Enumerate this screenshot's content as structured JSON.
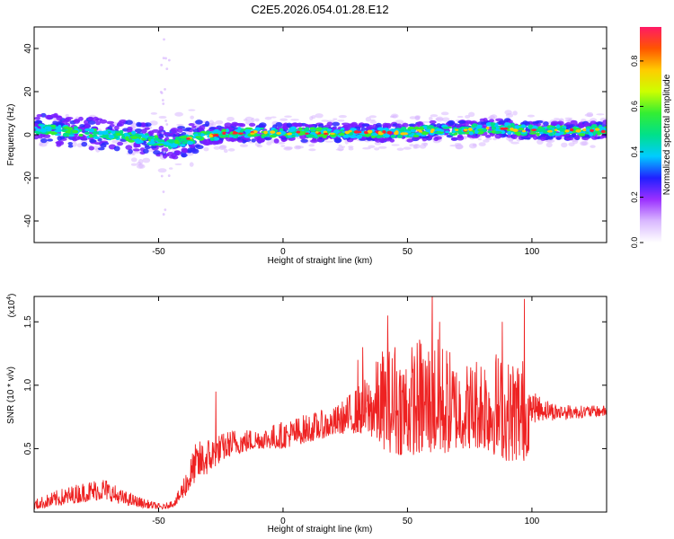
{
  "figure_title": "C2E5.2026.054.01.28.E12",
  "chart_data": [
    {
      "type": "heatmap",
      "title": "C2E5.2026.054.01.28.E12",
      "xlabel": "Height of straight line (km)",
      "ylabel": "Frequency (Hz)",
      "xlim": [
        -100,
        130
      ],
      "ylim": [
        -50,
        50
      ],
      "xticks": [
        -50,
        0,
        50,
        100
      ],
      "yticks": [
        -40,
        -20,
        0,
        20,
        40
      ],
      "xtick_labels": [
        "-50",
        "0",
        "50",
        "100"
      ],
      "ytick_labels": [
        "-40",
        "-20",
        "0",
        "20",
        "40"
      ],
      "ridge": {
        "x": [
          -100,
          -90,
          -80,
          -70,
          -60,
          -55,
          -50,
          -45,
          -40,
          -35,
          -30,
          -25,
          -20,
          -15,
          -10,
          -5,
          0,
          10,
          20,
          30,
          40,
          50,
          60,
          70,
          80,
          90,
          95,
          100,
          110,
          120,
          130
        ],
        "y": [
          3,
          2,
          1,
          0,
          -1,
          -2,
          -3,
          -4,
          -3,
          -1,
          0,
          0,
          1,
          1,
          1,
          1,
          1,
          1,
          1,
          1,
          1,
          1,
          2,
          2,
          3,
          3,
          2,
          2,
          2,
          2,
          2
        ]
      },
      "colorbar": {
        "label": "Normalized spectral amplitude",
        "range": [
          0,
          0.95
        ],
        "ticks": [
          0.0,
          0.2,
          0.4,
          0.6,
          0.8
        ],
        "tick_labels": [
          "0.0",
          "0.2",
          "0.4",
          "0.6",
          "0.8"
        ],
        "colors": [
          "#ffffff",
          "#d9b8ff",
          "#9b30ff",
          "#2020ff",
          "#00ccff",
          "#00e08a",
          "#33ee33",
          "#ccff00",
          "#ffcc00",
          "#ff5500",
          "#ff1a66"
        ]
      }
    },
    {
      "type": "line",
      "xlabel": "Height of straight line (km)",
      "ylabel": "SNR (10 * v/v)",
      "y_multiplier": "(x10^4)",
      "y_multiplier_base": "(x10",
      "y_multiplier_exp": "4",
      "y_multiplier_close": ")",
      "xlim": [
        -100,
        130
      ],
      "ylim": [
        0,
        1.7
      ],
      "xticks": [
        -50,
        0,
        50,
        100
      ],
      "yticks": [
        0.5,
        1.0,
        1.5
      ],
      "xtick_labels": [
        "-50",
        "0",
        "50",
        "100"
      ],
      "ytick_labels": [
        "0.5",
        "1.0",
        "1.5"
      ],
      "color": "#ee2222",
      "envelope": {
        "x": [
          -100,
          -90,
          -80,
          -72,
          -65,
          -55,
          -48,
          -43,
          -38,
          -35,
          -30,
          -25,
          -20,
          -10,
          0,
          10,
          20,
          25,
          30,
          35,
          40,
          45,
          50,
          55,
          60,
          65,
          70,
          75,
          80,
          85,
          90,
          95,
          97,
          99,
          100,
          105,
          110,
          120,
          130
        ],
        "lo": [
          0.02,
          0.05,
          0.08,
          0.1,
          0.06,
          0.03,
          0.02,
          0.05,
          0.15,
          0.25,
          0.3,
          0.4,
          0.45,
          0.5,
          0.5,
          0.55,
          0.6,
          0.62,
          0.62,
          0.6,
          0.5,
          0.45,
          0.45,
          0.45,
          0.45,
          0.45,
          0.5,
          0.5,
          0.5,
          0.45,
          0.4,
          0.4,
          0.4,
          0.5,
          0.7,
          0.72,
          0.72,
          0.74,
          0.75
        ],
        "hi": [
          0.1,
          0.18,
          0.24,
          0.28,
          0.18,
          0.1,
          0.06,
          0.12,
          0.4,
          0.55,
          0.6,
          0.62,
          0.66,
          0.66,
          0.72,
          0.78,
          0.82,
          0.9,
          1.0,
          1.1,
          1.3,
          1.3,
          1.3,
          1.4,
          1.4,
          1.35,
          1.2,
          1.2,
          1.3,
          1.3,
          1.2,
          1.3,
          1.2,
          1.1,
          0.95,
          0.9,
          0.85,
          0.84,
          0.84
        ]
      },
      "peaks": [
        {
          "x": -27,
          "y": 0.95
        },
        {
          "x": -10,
          "y": 0.62
        },
        {
          "x": 30,
          "y": 1.2
        },
        {
          "x": 32,
          "y": 1.3
        },
        {
          "x": 42,
          "y": 1.55
        },
        {
          "x": 45,
          "y": 1.3
        },
        {
          "x": 60,
          "y": 1.75
        },
        {
          "x": 63,
          "y": 1.5
        },
        {
          "x": 88,
          "y": 1.5
        },
        {
          "x": 97,
          "y": 1.68
        }
      ]
    }
  ]
}
